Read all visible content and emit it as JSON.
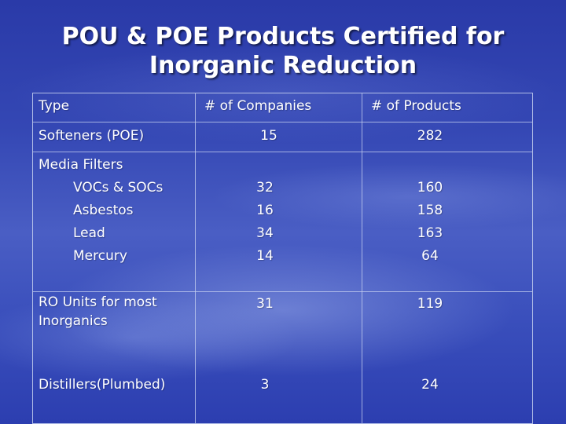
{
  "title": {
    "line1": "POU & POE Products Certified for",
    "line2": "Inorganic Reduction"
  },
  "table": {
    "headers": [
      "Type",
      "# of Companies",
      "# of Products"
    ],
    "rows": [
      {
        "type": "Softeners (POE)",
        "companies": "15",
        "products": "282"
      },
      {
        "type": "Media Filters",
        "subtypes": [
          "VOCs & SOCs",
          "Asbestos",
          "Lead",
          "Mercury"
        ],
        "companies": [
          "32",
          "16",
          "34",
          "14"
        ],
        "products": [
          "160",
          "158",
          "163",
          "64"
        ]
      },
      {
        "type_line1": "RO Units for most",
        "type_line2": "Inorganics",
        "companies": "31",
        "products": "119"
      },
      {
        "type": "Distillers(Plumbed)",
        "companies": "3",
        "products": "24"
      }
    ]
  }
}
